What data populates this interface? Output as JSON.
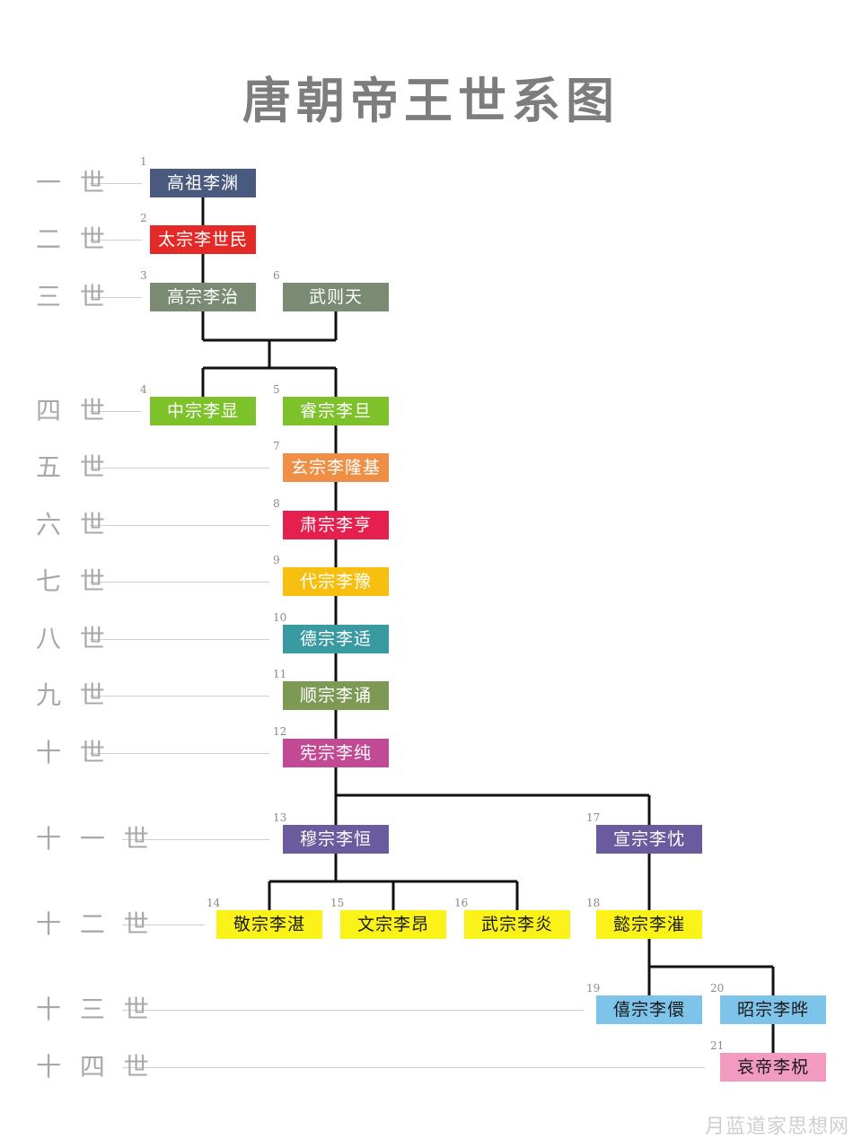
{
  "title": "唐朝帝王世系图",
  "watermark": "月蓝道家思想网",
  "generations": [
    "一 世",
    "二 世",
    "三 世",
    "四 世",
    "五 世",
    "六 世",
    "七 世",
    "八 世",
    "九 世",
    "十 世",
    "十 一 世",
    "十 二 世",
    "十 三 世",
    "十 四 世"
  ],
  "emperors": [
    {
      "seq": "1",
      "name": "高祖李渊",
      "color": "#4a5a7e"
    },
    {
      "seq": "2",
      "name": "太宗李世民",
      "color": "#e32a27"
    },
    {
      "seq": "3",
      "name": "高宗李治",
      "color": "#7b8a72"
    },
    {
      "seq": "6",
      "name": "武则天",
      "color": "#7b8a72"
    },
    {
      "seq": "4",
      "name": "中宗李显",
      "color": "#7dc22a"
    },
    {
      "seq": "5",
      "name": "睿宗李旦",
      "color": "#7dc22a"
    },
    {
      "seq": "7",
      "name": "玄宗李隆基",
      "color": "#ef8e45"
    },
    {
      "seq": "8",
      "name": "肃宗李亨",
      "color": "#e51f4e"
    },
    {
      "seq": "9",
      "name": "代宗李豫",
      "color": "#f7c010"
    },
    {
      "seq": "10",
      "name": "德宗李适",
      "color": "#3a9aa2"
    },
    {
      "seq": "11",
      "name": "顺宗李诵",
      "color": "#7d9a55"
    },
    {
      "seq": "12",
      "name": "宪宗李纯",
      "color": "#c24a94"
    },
    {
      "seq": "13",
      "name": "穆宗李恒",
      "color": "#6a5a9e"
    },
    {
      "seq": "17",
      "name": "宣宗李忱",
      "color": "#6a5a9e"
    },
    {
      "seq": "14",
      "name": "敬宗李湛",
      "color": "#fbf21a"
    },
    {
      "seq": "15",
      "name": "文宗李昂",
      "color": "#fbf21a"
    },
    {
      "seq": "16",
      "name": "武宗李炎",
      "color": "#fbf21a"
    },
    {
      "seq": "18",
      "name": "懿宗李漼",
      "color": "#fbf21a"
    },
    {
      "seq": "19",
      "name": "僖宗李儇",
      "color": "#7ec3ea"
    },
    {
      "seq": "20",
      "name": "昭宗李晔",
      "color": "#7ec3ea"
    },
    {
      "seq": "21",
      "name": "哀帝李柷",
      "color": "#f29ac0"
    }
  ]
}
